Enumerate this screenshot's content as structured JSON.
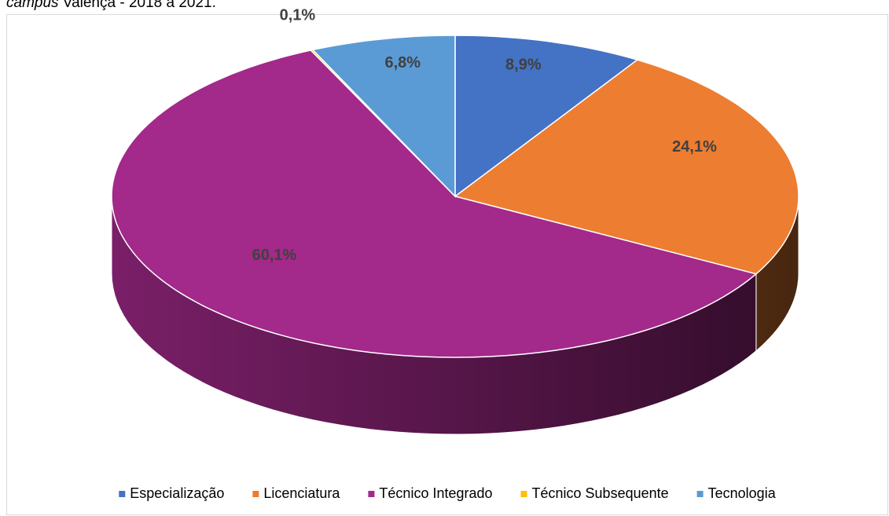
{
  "caption": {
    "italic": "campus",
    "text": " Valença - 2018 a 2021."
  },
  "chart_data": {
    "type": "pie3d",
    "categories": [
      "Especialização",
      "Licenciatura",
      "Técnico Integrado",
      "Técnico Subsequente",
      "Tecnologia"
    ],
    "values": [
      8.9,
      24.1,
      60.1,
      0.1,
      6.8
    ],
    "value_labels": [
      "8,9%",
      "24,1%",
      "60,1%",
      "0,1%",
      "6,8%"
    ],
    "colors": [
      "#4472c4",
      "#ed7d31",
      "#a3298a",
      "#ffc000",
      "#5b9bd5"
    ],
    "legend": "bottom"
  }
}
